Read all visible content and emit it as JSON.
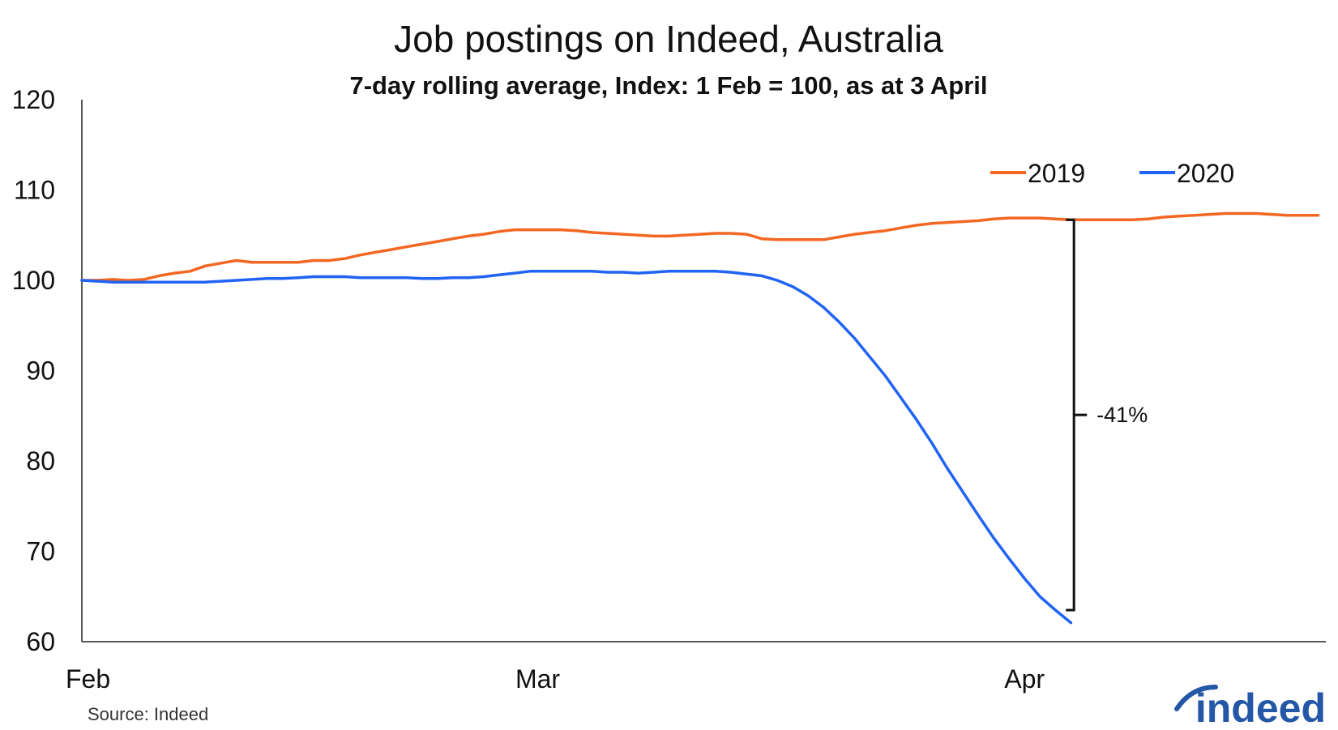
{
  "chart_data": {
    "type": "line",
    "title": "Job postings on Indeed, Australia",
    "subtitle": "7-day rolling average, Index: 1 Feb = 100, as at 3 April",
    "ylim": [
      60,
      120
    ],
    "yticks": [
      "120",
      "110",
      "100",
      "90",
      "80",
      "70",
      "60"
    ],
    "xlim": [
      0,
      80.5
    ],
    "xticks": [
      {
        "label": "Feb",
        "x": 0
      },
      {
        "label": "Mar",
        "x": 29.5
      },
      {
        "label": "Apr",
        "x": 61
      }
    ],
    "grid": false,
    "legend_position": "top-right",
    "series": [
      {
        "name": "2019",
        "color": "#f26722",
        "x": [
          0,
          1,
          2,
          3,
          4,
          5,
          6,
          7,
          8,
          9,
          10,
          11,
          12,
          13,
          14,
          15,
          16,
          17,
          18,
          19,
          20,
          21,
          22,
          23,
          24,
          25,
          26,
          27,
          28,
          29,
          30,
          31,
          32,
          33,
          34,
          35,
          36,
          37,
          38,
          39,
          40,
          41,
          42,
          43,
          44,
          45,
          46,
          47,
          48,
          49,
          50,
          51,
          52,
          53,
          54,
          55,
          56,
          57,
          58,
          59,
          60,
          61,
          62,
          63,
          64,
          65,
          66,
          67,
          68,
          69,
          70,
          71,
          72,
          73,
          74,
          75,
          76,
          77,
          78,
          79,
          80
        ],
        "values": [
          100,
          100,
          100.1,
          100,
          100.1,
          100.5,
          100.8,
          101,
          101.6,
          101.9,
          102.2,
          102,
          102,
          102,
          102,
          102.2,
          102.2,
          102.4,
          102.8,
          103.1,
          103.4,
          103.7,
          104,
          104.3,
          104.6,
          104.9,
          105.1,
          105.4,
          105.6,
          105.6,
          105.6,
          105.6,
          105.5,
          105.3,
          105.2,
          105.1,
          105,
          104.9,
          104.9,
          105,
          105.1,
          105.2,
          105.2,
          105.1,
          104.6,
          104.5,
          104.5,
          104.5,
          104.5,
          104.8,
          105.1,
          105.3,
          105.5,
          105.8,
          106.1,
          106.3,
          106.4,
          106.5,
          106.6,
          106.8,
          106.9,
          106.9,
          106.9,
          106.8,
          106.7,
          106.7,
          106.7,
          106.7,
          106.7,
          106.8,
          107,
          107.1,
          107.2,
          107.3,
          107.4,
          107.4,
          107.4,
          107.3,
          107.2,
          107.2,
          107.2
        ]
      },
      {
        "name": "2020",
        "color": "#2164f3",
        "x": [
          0,
          1,
          2,
          3,
          4,
          5,
          6,
          7,
          8,
          9,
          10,
          11,
          12,
          13,
          14,
          15,
          16,
          17,
          18,
          19,
          20,
          21,
          22,
          23,
          24,
          25,
          26,
          27,
          28,
          29,
          30,
          31,
          32,
          33,
          34,
          35,
          36,
          37,
          38,
          39,
          40,
          41,
          42,
          43,
          44,
          45,
          46,
          47,
          48,
          49,
          50,
          51,
          52,
          53,
          54,
          55,
          56,
          57,
          58,
          59,
          60,
          61,
          62,
          63,
          64
        ],
        "values": [
          100,
          99.9,
          99.8,
          99.8,
          99.8,
          99.8,
          99.8,
          99.8,
          99.8,
          99.9,
          100,
          100.1,
          100.2,
          100.2,
          100.3,
          100.4,
          100.4,
          100.4,
          100.3,
          100.3,
          100.3,
          100.3,
          100.2,
          100.2,
          100.3,
          100.3,
          100.4,
          100.6,
          100.8,
          101,
          101,
          101,
          101,
          101,
          100.9,
          100.9,
          100.8,
          100.9,
          101,
          101,
          101,
          101,
          100.9,
          100.7,
          100.5,
          100,
          99.3,
          98.3,
          97,
          95.4,
          93.6,
          91.5,
          89.4,
          87,
          84.6,
          82,
          79.2,
          76.6,
          74,
          71.5,
          69.2,
          67,
          65,
          63.5,
          62.1
        ]
      }
    ],
    "annotation": {
      "label": "-41%",
      "x": 64.2,
      "y_top": 106.7,
      "y_bottom": 63.5
    }
  },
  "source": "Source: Indeed",
  "logo": "indeed",
  "logo_color": "#2557a7"
}
